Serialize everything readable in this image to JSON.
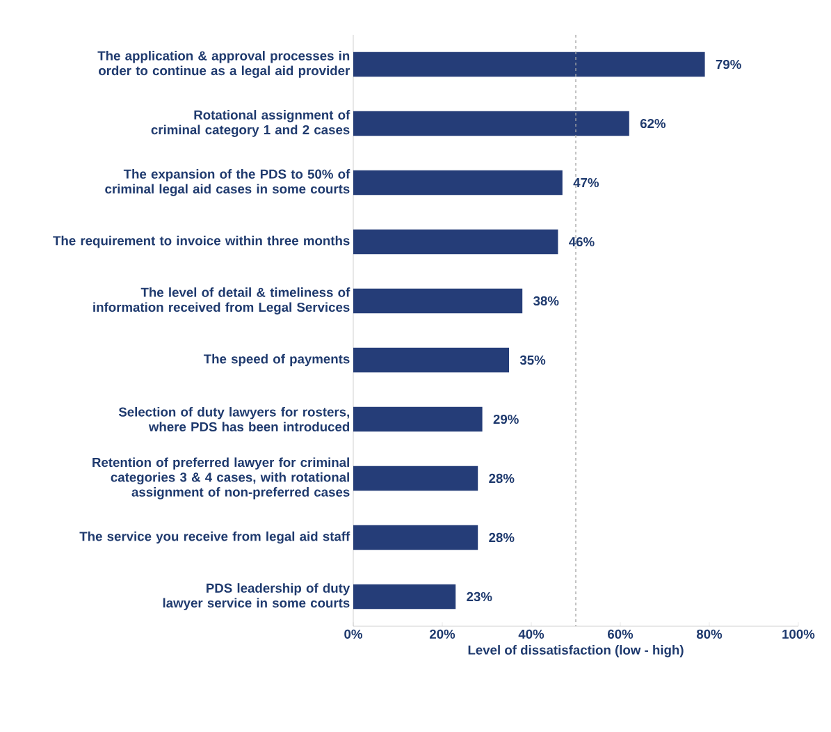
{
  "chart_data": {
    "type": "bar",
    "orientation": "horizontal",
    "xlabel": "Level of dissatisfaction (low - high)",
    "categories": [
      "The application & approval processes in order to continue as a legal aid provider",
      "Rotational assignment of criminal category 1 and 2 cases",
      "The expansion of the PDS to 50% of criminal legal aid cases in some courts",
      "The requirement to invoice within three months",
      "The level of detail & timeliness of information received from Legal Services",
      "The speed of payments",
      "Selection of duty lawyers for rosters, where PDS has been introduced",
      "Retention of preferred lawyer for criminal categories 3 & 4 cases, with rotational assignment of non-preferred cases",
      "The service you receive from legal aid staff",
      "PDS leadership of duty lawyer service in some courts"
    ],
    "values": [
      79,
      62,
      47,
      46,
      38,
      35,
      29,
      28,
      28,
      23
    ],
    "value_labels": [
      "79%",
      "62%",
      "47%",
      "46%",
      "38%",
      "35%",
      "29%",
      "28%",
      "28%",
      "23%"
    ],
    "color": "#253d78",
    "xlim": [
      0,
      100
    ],
    "xticks": [
      {
        "value": 0,
        "label": "0%"
      },
      {
        "value": 20,
        "label": "20%"
      },
      {
        "value": 40,
        "label": "40%"
      },
      {
        "value": 60,
        "label": "60%"
      },
      {
        "value": 80,
        "label": "80%"
      },
      {
        "value": 100,
        "label": "100%"
      }
    ],
    "ref_lines": [
      {
        "axis": "x",
        "value": 50,
        "color": "#a6a6a6",
        "line_style": "dashed"
      }
    ]
  }
}
